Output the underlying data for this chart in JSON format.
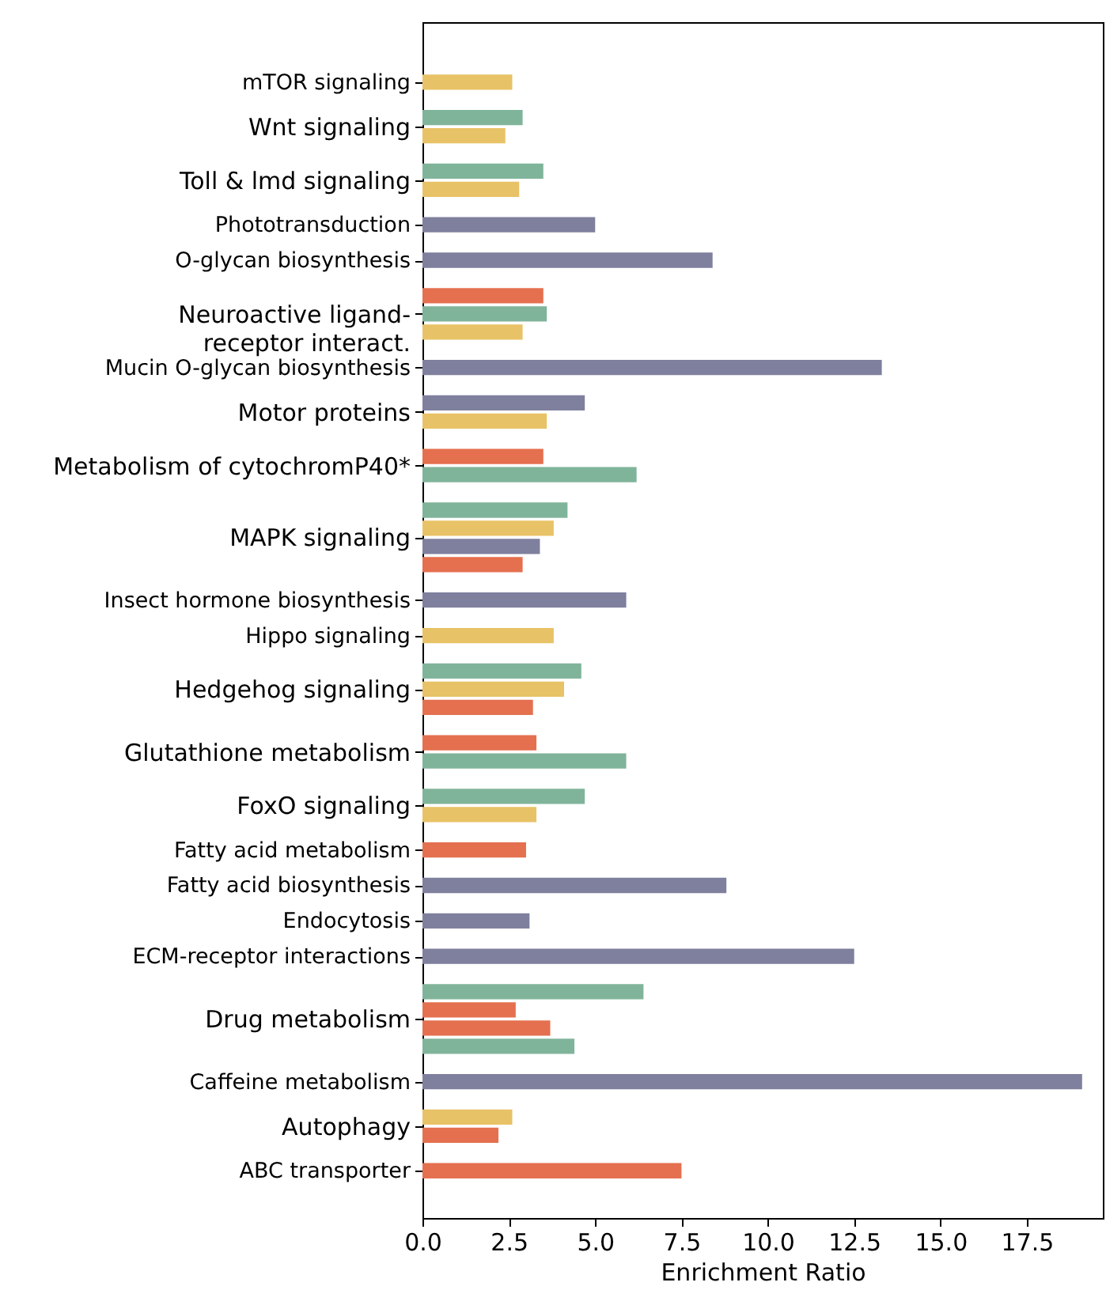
{
  "chart_data": {
    "type": "bar",
    "orientation": "horizontal",
    "xlabel": "Enrichment Ratio",
    "categories": [
      "mTOR signaling",
      "Wnt signaling",
      "Toll & lmd signaling",
      "Phototransduction",
      "O-glycan biosynthesis",
      "Neuroactive ligand-receptor interact.",
      "Mucin O-glycan biosynthesis",
      "Motor proteins",
      "Metabolism of cytochromP40*",
      "MAPK signaling",
      "Insect hormone biosynthesis",
      "Hippo signaling",
      "Hedgehog signaling",
      "Glutathione metabolism",
      "FoxO signaling",
      "Fatty acid metabolism",
      "Fatty acid biosynthesis",
      "Endocytosis",
      "ECM-receptor interactions",
      "Drug metabolism",
      "Caffeine metabolism",
      "Autophagy",
      "ABC transporter"
    ],
    "series": [
      {
        "values": [
          2.6,
          2.9,
          3.5,
          5.0,
          8.4,
          3.5,
          13.3,
          4.7,
          3.5,
          4.2,
          5.9,
          3.8,
          4.6,
          3.3,
          4.7,
          3.0,
          8.8,
          3.1,
          12.5,
          6.4,
          19.1,
          2.6,
          7.5
        ],
        "colors": [
          "#e8c266",
          "#80b49a",
          "#80b49a",
          "#7f7f9e",
          "#7f7f9e",
          "#e4704f",
          "#7f7f9e",
          "#7f7f9e",
          "#e4704f",
          "#80b49a",
          "#7f7f9e",
          "#e8c266",
          "#80b49a",
          "#e4704f",
          "#80b49a",
          "#e4704f",
          "#7f7f9e",
          "#7f7f9e",
          "#7f7f9e",
          "#80b49a",
          "#7f7f9e",
          "#e8c266",
          "#e4704f"
        ]
      },
      {
        "values": [
          null,
          2.4,
          2.8,
          null,
          null,
          3.6,
          null,
          3.6,
          6.2,
          3.8,
          null,
          null,
          4.1,
          5.9,
          3.3,
          null,
          null,
          null,
          null,
          2.7,
          null,
          2.2,
          null
        ],
        "colors": [
          null,
          "#e8c266",
          "#e8c266",
          null,
          null,
          "#80b49a",
          null,
          "#e8c266",
          "#80b49a",
          "#e8c266",
          null,
          null,
          "#e8c266",
          "#80b49a",
          "#e8c266",
          null,
          null,
          null,
          null,
          "#e4704f",
          null,
          "#e4704f",
          null
        ]
      },
      {
        "values": [
          null,
          null,
          null,
          null,
          null,
          2.9,
          null,
          null,
          null,
          3.4,
          null,
          null,
          3.2,
          null,
          null,
          null,
          null,
          null,
          null,
          3.7,
          null,
          null,
          null
        ],
        "colors": [
          null,
          null,
          null,
          null,
          null,
          "#e8c266",
          null,
          null,
          null,
          "#7f7f9e",
          null,
          null,
          "#e4704f",
          null,
          null,
          null,
          null,
          null,
          null,
          "#e4704f",
          null,
          null,
          null
        ]
      },
      {
        "values": [
          null,
          null,
          null,
          null,
          null,
          null,
          null,
          null,
          null,
          2.9,
          null,
          null,
          null,
          null,
          null,
          null,
          null,
          null,
          null,
          4.4,
          null,
          null,
          null
        ],
        "colors": [
          null,
          null,
          null,
          null,
          null,
          null,
          null,
          null,
          null,
          "#e4704f",
          null,
          null,
          null,
          null,
          null,
          null,
          null,
          null,
          null,
          "#80b49a",
          null,
          null,
          null
        ]
      }
    ],
    "xlim": [
      0,
      19.7
    ],
    "xticks": [
      {
        "value": 0,
        "label": "0.0"
      },
      2.5,
      {
        "value": 5,
        "label": "5.0"
      },
      7.5,
      {
        "value": 10,
        "label": "10.0"
      },
      12.5,
      {
        "value": 15,
        "label": "15.0"
      },
      17.5
    ]
  }
}
